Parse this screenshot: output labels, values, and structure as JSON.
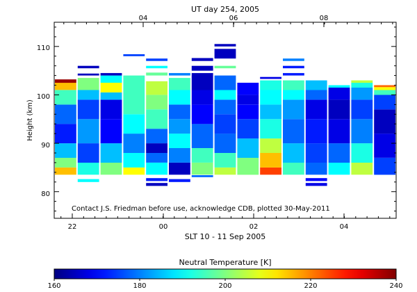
{
  "chart_data": {
    "type": "heatmap",
    "title_top": "UT day 254, 2005",
    "top_tick_labels": [
      "04",
      "06",
      "08"
    ],
    "bottom_tick_labels": [
      "22",
      "00",
      "02",
      "04"
    ],
    "xlabel": "SLT 10 - 11 Sep 2005",
    "ylabel": "Height (km)",
    "y_tick_labels": [
      "80",
      "90",
      "100",
      "110"
    ],
    "ylim": [
      74.5,
      115
    ],
    "y_ticks": [
      80,
      90,
      100,
      110
    ],
    "annotation": "Contact J.S. Friedman before use, acknowledge CDB, plotted 30-May-2011",
    "colorbar": {
      "label": "Neutral Temperature [K]",
      "range": [
        160,
        240
      ],
      "tick_values": [
        160,
        180,
        200,
        220,
        240
      ],
      "tick_labels": [
        "160",
        "180",
        "200",
        "220",
        "240"
      ]
    },
    "profiles": [
      {
        "segments": [
          [
            83.5,
            85,
            215
          ],
          [
            85,
            87,
            200
          ],
          [
            87,
            90,
            185
          ],
          [
            90,
            94,
            172
          ],
          [
            94,
            98,
            178
          ],
          [
            98,
            101,
            195
          ],
          [
            101,
            102.5,
            215
          ],
          [
            102.5,
            103.2,
            238
          ]
        ]
      },
      {
        "segments": [
          [
            82,
            82.6,
            190
          ],
          [
            83.5,
            86,
            192
          ],
          [
            86,
            90,
            175
          ],
          [
            90,
            95,
            182
          ],
          [
            95,
            99,
            175
          ],
          [
            99,
            101,
            185
          ],
          [
            101,
            103.5,
            200
          ],
          [
            104,
            104.4,
            165
          ],
          [
            105.5,
            106,
            165
          ]
        ]
      },
      {
        "segments": [
          [
            83.5,
            86,
            200
          ],
          [
            86,
            90,
            185
          ],
          [
            90,
            95,
            170
          ],
          [
            95,
            99,
            168
          ],
          [
            99,
            100.5,
            185
          ],
          [
            100.5,
            102.5,
            210
          ],
          [
            102.5,
            104,
            190
          ],
          [
            104,
            104.5,
            165
          ]
        ]
      },
      {
        "segments": [
          [
            83.5,
            85,
            210
          ],
          [
            85,
            88,
            190
          ],
          [
            88,
            92,
            180
          ],
          [
            92,
            96,
            190
          ],
          [
            96,
            100,
            195
          ],
          [
            100,
            104,
            195
          ],
          [
            108,
            108.4,
            175
          ]
        ]
      },
      {
        "segments": [
          [
            81.2,
            81.8,
            165
          ],
          [
            82.2,
            82.8,
            172
          ],
          [
            83.5,
            86,
            190
          ],
          [
            86,
            88,
            178
          ],
          [
            88,
            90,
            165
          ],
          [
            90,
            93,
            178
          ],
          [
            93,
            97,
            195
          ],
          [
            97,
            100,
            200
          ],
          [
            100,
            102.8,
            205
          ],
          [
            104,
            104.6,
            198
          ],
          [
            105.5,
            106,
            190
          ],
          [
            107,
            107.5,
            175
          ]
        ]
      },
      {
        "segments": [
          [
            82,
            82.6,
            172
          ],
          [
            83.5,
            86,
            165
          ],
          [
            86,
            89,
            180
          ],
          [
            89,
            92,
            190
          ],
          [
            92,
            95,
            182
          ],
          [
            95,
            98,
            178
          ],
          [
            98,
            101,
            190
          ],
          [
            101,
            103.5,
            195
          ],
          [
            104,
            104.5,
            180
          ]
        ]
      },
      {
        "segments": [
          [
            83,
            83.4,
            178
          ],
          [
            83.5,
            86,
            200
          ],
          [
            86,
            89,
            195
          ],
          [
            89,
            94,
            178
          ],
          [
            94,
            98,
            170
          ],
          [
            98,
            101,
            168
          ],
          [
            101,
            104.5,
            165
          ],
          [
            105,
            106,
            165
          ],
          [
            107,
            107.6,
            165
          ]
        ]
      },
      {
        "segments": [
          [
            83.5,
            85,
            205
          ],
          [
            85,
            88,
            195
          ],
          [
            88,
            92,
            178
          ],
          [
            92,
            96,
            175
          ],
          [
            96,
            99,
            178
          ],
          [
            99,
            101,
            190
          ],
          [
            101,
            104,
            178
          ],
          [
            105.5,
            106,
            198
          ],
          [
            107.5,
            109.5,
            165
          ],
          [
            110,
            110.5,
            165
          ]
        ]
      },
      {
        "segments": [
          [
            83.5,
            87,
            200
          ],
          [
            87,
            91,
            185
          ],
          [
            91,
            95,
            175
          ],
          [
            95,
            98,
            170
          ],
          [
            98,
            100,
            168
          ],
          [
            100,
            102.5,
            170
          ]
        ]
      },
      {
        "segments": [
          [
            83.5,
            85,
            225
          ],
          [
            85,
            88,
            215
          ],
          [
            88,
            91,
            205
          ],
          [
            91,
            95,
            192
          ],
          [
            95,
            98,
            185
          ],
          [
            98,
            101,
            190
          ],
          [
            101,
            103,
            192
          ],
          [
            103.3,
            103.7,
            168
          ]
        ]
      },
      {
        "segments": [
          [
            83.5,
            86,
            195
          ],
          [
            86,
            90,
            185
          ],
          [
            90,
            95,
            178
          ],
          [
            95,
            99,
            182
          ],
          [
            99,
            101,
            190
          ],
          [
            101,
            103,
            195
          ],
          [
            104,
            104.5,
            172
          ],
          [
            105.5,
            106,
            172
          ],
          [
            107,
            107.5,
            180
          ]
        ]
      },
      {
        "segments": [
          [
            81.2,
            81.8,
            168
          ],
          [
            82.2,
            82.8,
            170
          ],
          [
            83.5,
            86,
            178
          ],
          [
            86,
            90,
            175
          ],
          [
            90,
            95,
            172
          ],
          [
            95,
            99,
            168
          ],
          [
            99,
            101,
            178
          ],
          [
            101,
            103,
            185
          ]
        ]
      },
      {
        "segments": [
          [
            83.5,
            86,
            190
          ],
          [
            86,
            90,
            178
          ],
          [
            90,
            95,
            168
          ],
          [
            95,
            99,
            165
          ],
          [
            99,
            101.5,
            168
          ],
          [
            101.5,
            102,
            190
          ]
        ]
      },
      {
        "segments": [
          [
            83.5,
            86,
            205
          ],
          [
            86,
            90,
            192
          ],
          [
            90,
            95,
            180
          ],
          [
            95,
            99,
            175
          ],
          [
            99,
            101.5,
            182
          ],
          [
            101.5,
            102.5,
            192
          ],
          [
            102.5,
            103,
            205
          ]
        ]
      },
      {
        "segments": [
          [
            83.5,
            87,
            175
          ],
          [
            87,
            92,
            168
          ],
          [
            92,
            97,
            165
          ],
          [
            97,
            100,
            175
          ],
          [
            100,
            101,
            195
          ],
          [
            101,
            101.6,
            210
          ],
          [
            101.6,
            102,
            222
          ]
        ]
      }
    ]
  }
}
